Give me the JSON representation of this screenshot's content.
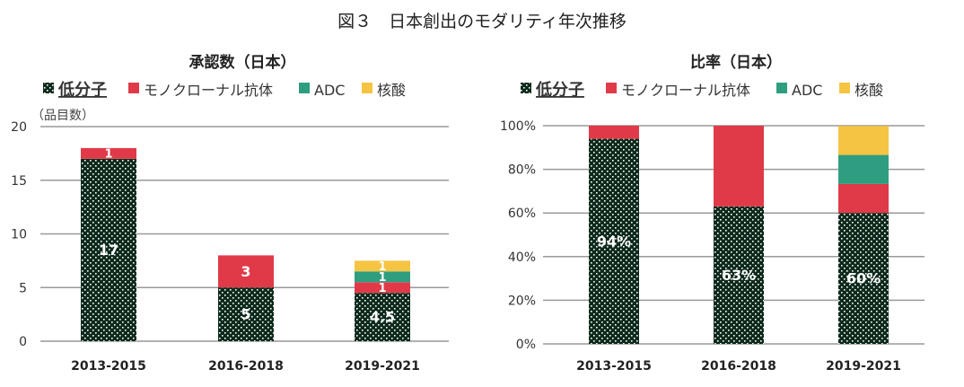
{
  "figure_title": "図３　日本創出のモダリティ年次推移",
  "colors": {
    "small_molecule": "#0d2a1c",
    "antibody": "#e03a48",
    "adc": "#2f9e80",
    "nucleic_acid": "#f5c443"
  },
  "chart_data": [
    {
      "type": "bar",
      "stacked": true,
      "title": "承認数（日本）",
      "ylabel": "（品目数）",
      "ylim": [
        0,
        20
      ],
      "yticks": [
        "0",
        "5",
        "10",
        "15",
        "20"
      ],
      "grid": true,
      "legend_placement": "top",
      "categories": [
        "2013-2015",
        "2016-2018",
        "2019-2021"
      ],
      "series": [
        {
          "name": "低分子",
          "values": [
            17,
            5,
            4.5
          ],
          "labels": [
            "17",
            "5",
            "4.5"
          ]
        },
        {
          "name": "モノクローナル抗体",
          "values": [
            1,
            3,
            1
          ],
          "labels": [
            "1",
            "3",
            "1"
          ]
        },
        {
          "name": "ADC",
          "values": [
            0,
            0,
            1
          ],
          "labels": [
            "",
            "",
            "1"
          ]
        },
        {
          "name": "核酸",
          "values": [
            0,
            0,
            1
          ],
          "labels": [
            "",
            "",
            "1"
          ]
        }
      ]
    },
    {
      "type": "bar",
      "stacked": true,
      "title": "比率（日本）",
      "ylim": [
        0,
        100
      ],
      "yticks": [
        "0%",
        "20%",
        "40%",
        "60%",
        "80%",
        "100%"
      ],
      "grid": true,
      "legend_placement": "top",
      "categories": [
        "2013-2015",
        "2016-2018",
        "2019-2021"
      ],
      "series": [
        {
          "name": "低分子",
          "values": [
            94,
            63,
            60
          ],
          "labels": [
            "94%",
            "63%",
            "60%"
          ]
        },
        {
          "name": "モノクローナル抗体",
          "values": [
            6,
            37,
            13.3
          ],
          "labels": [
            "",
            "",
            ""
          ]
        },
        {
          "name": "ADC",
          "values": [
            0,
            0,
            13.3
          ],
          "labels": [
            "",
            "",
            ""
          ]
        },
        {
          "name": "核酸",
          "values": [
            0,
            0,
            13.3
          ],
          "labels": [
            "",
            "",
            ""
          ]
        }
      ]
    }
  ]
}
